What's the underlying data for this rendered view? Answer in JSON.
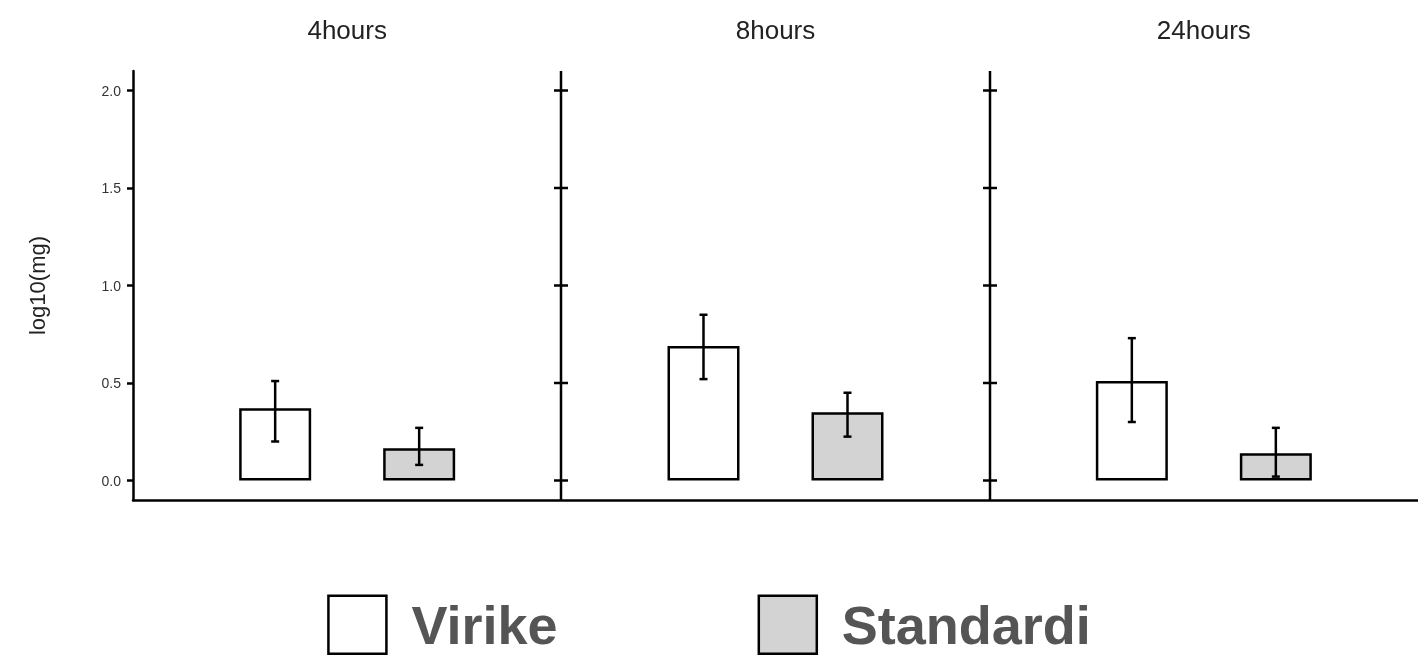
{
  "chart_data": {
    "type": "bar",
    "ylabel": "log10(mg)",
    "categories": [
      "4hours",
      "8hours",
      "24hours"
    ],
    "legend": "bottom",
    "ylim": [
      -0.1,
      2.1
    ],
    "yticks": [
      {
        "value": 0,
        "label": "0.0"
      },
      {
        "value": 0.5,
        "label": "0.5"
      },
      {
        "value": 1,
        "label": "1.0"
      },
      {
        "value": 1.5,
        "label": "1.5"
      },
      {
        "value": 2,
        "label": "2.0"
      }
    ],
    "series": [
      {
        "name": "Virike",
        "color": "#ffffff",
        "values": [
          0.37,
          0.69,
          0.51
        ],
        "errors": [
          [
            0.2,
            0.51
          ],
          [
            0.52,
            0.85
          ],
          [
            0.3,
            0.73
          ]
        ]
      },
      {
        "name": "Standardi",
        "color": "#d3d3d3",
        "values": [
          0.165,
          0.35,
          0.14
        ],
        "errors": [
          [
            0.08,
            0.27
          ],
          [
            0.225,
            0.45
          ],
          [
            0.02,
            0.27
          ]
        ]
      }
    ]
  }
}
